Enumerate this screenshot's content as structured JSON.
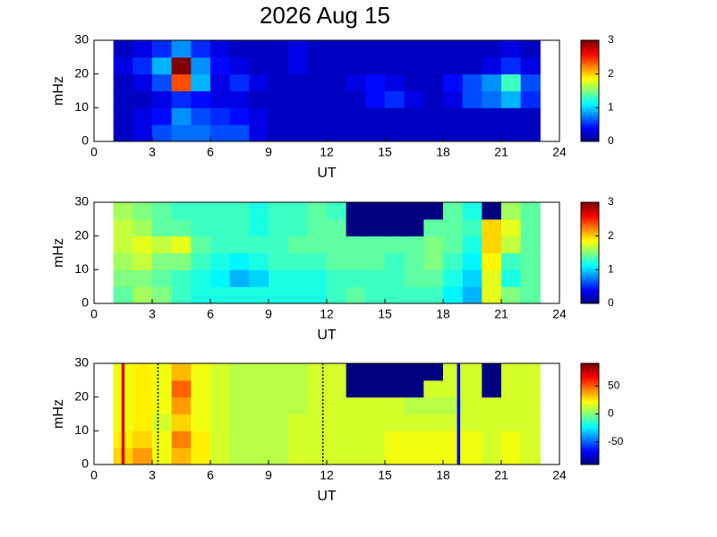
{
  "title": "2026 Aug 15",
  "chart_data": [
    {
      "type": "heatmap",
      "xlabel": "UT",
      "ylabel": "mHz",
      "xlim": [
        0,
        24
      ],
      "xticks": [
        0,
        3,
        6,
        9,
        12,
        15,
        18,
        21,
        24
      ],
      "ylim": [
        0,
        30
      ],
      "yticks": [
        0,
        10,
        20,
        30
      ],
      "clim": [
        0,
        3
      ],
      "cticks": [
        0,
        1,
        2,
        3
      ],
      "colormap": "jet",
      "x_edges": [
        1,
        2,
        3,
        4,
        5,
        6,
        7,
        8,
        9,
        10,
        11,
        12,
        13,
        14,
        15,
        16,
        17,
        18,
        19,
        20,
        21,
        22,
        23
      ],
      "y_edges": [
        0,
        5,
        10,
        15,
        20,
        25,
        30
      ],
      "z": [
        [
          0.2,
          0.3,
          0.6,
          0.7,
          0.7,
          0.6,
          0.6,
          0.3,
          0.2,
          0.2,
          0.2,
          0.2,
          0.2,
          0.2,
          0.2,
          0.2,
          0.2,
          0.2,
          0.2,
          0.2,
          0.2,
          0.2
        ],
        [
          0.2,
          0.3,
          0.4,
          0.8,
          0.6,
          0.5,
          0.4,
          0.3,
          0.2,
          0.2,
          0.2,
          0.2,
          0.2,
          0.2,
          0.2,
          0.2,
          0.2,
          0.2,
          0.2,
          0.2,
          0.2,
          0.2
        ],
        [
          0.2,
          0.2,
          0.3,
          0.5,
          0.4,
          0.3,
          0.3,
          0.2,
          0.2,
          0.2,
          0.2,
          0.2,
          0.2,
          0.4,
          0.5,
          0.3,
          0.2,
          0.3,
          0.6,
          0.7,
          0.9,
          0.5
        ],
        [
          0.2,
          0.3,
          0.6,
          2.4,
          0.9,
          0.3,
          0.5,
          0.3,
          0.2,
          0.2,
          0.2,
          0.2,
          0.3,
          0.4,
          0.3,
          0.2,
          0.2,
          0.4,
          0.6,
          0.8,
          1.3,
          0.6
        ],
        [
          0.3,
          0.5,
          0.9,
          3.0,
          0.8,
          0.4,
          0.3,
          0.2,
          0.2,
          0.3,
          0.2,
          0.2,
          0.2,
          0.2,
          0.2,
          0.2,
          0.2,
          0.2,
          0.2,
          0.3,
          0.5,
          0.3
        ],
        [
          0.2,
          0.3,
          0.5,
          0.8,
          0.5,
          0.3,
          0.2,
          0.2,
          0.2,
          0.3,
          0.2,
          0.2,
          0.2,
          0.2,
          0.2,
          0.2,
          0.2,
          0.2,
          0.2,
          0.2,
          0.3,
          0.2
        ]
      ]
    },
    {
      "type": "heatmap",
      "xlabel": "UT",
      "ylabel": "mHz",
      "xlim": [
        0,
        24
      ],
      "xticks": [
        0,
        3,
        6,
        9,
        12,
        15,
        18,
        21,
        24
      ],
      "ylim": [
        0,
        30
      ],
      "yticks": [
        0,
        10,
        20,
        30
      ],
      "clim": [
        0,
        3
      ],
      "cticks": [
        0,
        1,
        2,
        3
      ],
      "colormap": "jet",
      "x_edges": [
        1,
        2,
        3,
        4,
        5,
        6,
        7,
        8,
        9,
        10,
        11,
        12,
        13,
        14,
        15,
        16,
        17,
        18,
        19,
        20,
        21,
        22,
        23
      ],
      "y_edges": [
        0,
        5,
        10,
        15,
        20,
        25,
        30
      ],
      "z": [
        [
          1.4,
          1.6,
          1.5,
          1.3,
          1.2,
          1.2,
          1.2,
          1.2,
          1.2,
          1.2,
          1.2,
          1.3,
          1.4,
          1.3,
          1.3,
          1.3,
          1.3,
          1.1,
          0.9,
          1.8,
          1.5,
          1.4
        ],
        [
          1.5,
          1.5,
          1.4,
          1.3,
          1.2,
          1.1,
          0.9,
          1.0,
          1.2,
          1.2,
          1.2,
          1.3,
          1.3,
          1.3,
          1.3,
          1.4,
          1.4,
          1.2,
          1.0,
          1.8,
          1.2,
          1.4
        ],
        [
          1.6,
          1.7,
          1.5,
          1.5,
          1.3,
          1.2,
          1.1,
          1.2,
          1.3,
          1.3,
          1.3,
          1.4,
          1.4,
          1.4,
          1.3,
          1.4,
          1.5,
          1.3,
          1.1,
          1.9,
          1.3,
          1.4
        ],
        [
          1.7,
          1.8,
          1.7,
          1.8,
          1.4,
          1.3,
          1.3,
          1.3,
          1.3,
          1.4,
          1.4,
          1.4,
          1.4,
          1.4,
          1.4,
          1.4,
          1.5,
          1.4,
          1.2,
          2.0,
          1.7,
          1.4
        ],
        [
          1.7,
          1.6,
          1.4,
          1.4,
          1.3,
          1.3,
          1.3,
          1.2,
          1.3,
          1.3,
          1.4,
          1.4,
          0,
          0,
          0,
          0,
          1.4,
          1.4,
          1.3,
          2.0,
          1.8,
          1.4
        ],
        [
          1.6,
          1.5,
          1.4,
          1.3,
          1.3,
          1.3,
          1.3,
          1.2,
          1.3,
          1.3,
          1.4,
          1.3,
          0,
          0,
          0,
          0,
          0,
          1.4,
          1.2,
          0,
          1.6,
          1.4
        ]
      ]
    },
    {
      "type": "heatmap",
      "xlabel": "UT",
      "ylabel": "mHz",
      "xlim": [
        0,
        24
      ],
      "xticks": [
        0,
        3,
        6,
        9,
        12,
        15,
        18,
        21,
        24
      ],
      "ylim": [
        0,
        30
      ],
      "yticks": [
        0,
        10,
        20,
        30
      ],
      "clim": [
        -90,
        90
      ],
      "cticks": [
        -50,
        0,
        50
      ],
      "colormap": "jet",
      "x_edges": [
        1,
        2,
        3,
        4,
        5,
        6,
        7,
        8,
        9,
        10,
        11,
        12,
        13,
        14,
        15,
        16,
        17,
        18,
        19,
        20,
        21,
        22,
        23
      ],
      "y_edges": [
        0,
        5,
        10,
        15,
        20,
        25,
        30
      ],
      "z": [
        [
          30,
          40,
          20,
          35,
          25,
          15,
          10,
          10,
          10,
          15,
          15,
          15,
          15,
          15,
          20,
          20,
          20,
          20,
          20,
          15,
          20,
          15
        ],
        [
          25,
          30,
          20,
          45,
          25,
          15,
          10,
          10,
          10,
          15,
          15,
          15,
          15,
          15,
          20,
          20,
          20,
          20,
          20,
          15,
          20,
          15
        ],
        [
          20,
          25,
          15,
          30,
          20,
          15,
          10,
          10,
          10,
          15,
          15,
          15,
          15,
          15,
          15,
          15,
          15,
          15,
          15,
          15,
          15,
          15
        ],
        [
          20,
          25,
          20,
          40,
          20,
          15,
          10,
          10,
          10,
          10,
          15,
          15,
          15,
          15,
          15,
          10,
          10,
          10,
          15,
          15,
          15,
          15
        ],
        [
          20,
          25,
          20,
          50,
          20,
          15,
          10,
          10,
          10,
          10,
          15,
          15,
          -90,
          -90,
          -90,
          -90,
          15,
          15,
          15,
          -90,
          15,
          15
        ],
        [
          20,
          25,
          20,
          35,
          20,
          15,
          10,
          10,
          10,
          10,
          15,
          15,
          -90,
          -90,
          -90,
          -90,
          -90,
          15,
          15,
          -90,
          15,
          15
        ]
      ],
      "vlines": [
        {
          "x": 1.5,
          "color": "#e00000",
          "style": "solid"
        },
        {
          "x": 3.3,
          "color": "#000000",
          "style": "dotted"
        },
        {
          "x": 11.8,
          "color": "#000000",
          "style": "dotted"
        },
        {
          "x": 18.8,
          "color": "#0000e0",
          "style": "solid"
        }
      ]
    }
  ]
}
